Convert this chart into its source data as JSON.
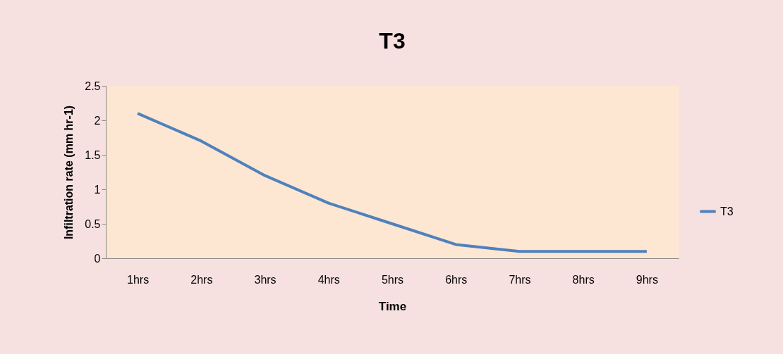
{
  "chart_data": {
    "type": "line",
    "title": "T3",
    "xlabel": "Time",
    "ylabel": "Infiltration rate (mm hr-1)",
    "categories": [
      "1hrs",
      "2hrs",
      "3hrs",
      "4hrs",
      "5hrs",
      "6hrs",
      "7hrs",
      "8hrs",
      "9hrs"
    ],
    "series": [
      {
        "name": "T3",
        "color": "#4f81bd",
        "values": [
          2.1,
          1.7,
          1.2,
          0.8,
          0.5,
          0.2,
          0.1,
          0.1,
          0.1
        ]
      }
    ],
    "ylim": [
      0,
      2.5
    ],
    "yticks": [
      0,
      0.5,
      1,
      1.5,
      2,
      2.5
    ],
    "grid": false,
    "legend": "right",
    "marker": "none"
  }
}
